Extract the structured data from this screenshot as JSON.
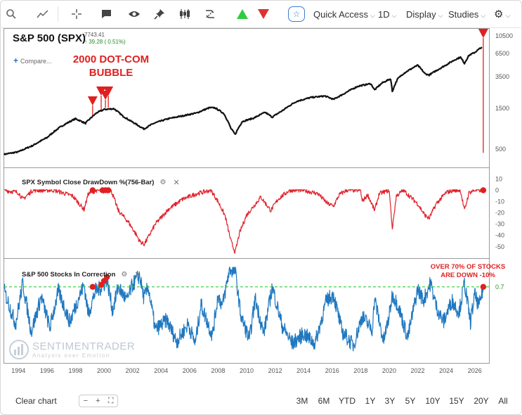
{
  "toolbar": {
    "quick_access_label": "Quick Access",
    "interval_label": "1D",
    "display_label": "Display",
    "studies_label": "Studies"
  },
  "header": {
    "title": "S&P 500 (SPX)",
    "price": "7743.41",
    "change": "39.28 ( 0.51%)",
    "compare_label": "Compare..."
  },
  "annotations": {
    "dotcom_line1": "2000 DOT-COM",
    "dotcom_line2": "BUBBLE",
    "over70_line1": "OVER 70% OF STOCKS",
    "over70_line2": "ARE DOWN -10%"
  },
  "panels": {
    "drawdown_title": "SPX Symbol Close DrawDown %(756-Bar)",
    "correction_title": "S&P 500 Stocks In Correction"
  },
  "watermark": {
    "brand": "SENTIMENTRADER",
    "tagline": "Analysis over Emotion"
  },
  "colors": {
    "price_line": "#111111",
    "drawdown_line": "#e0202a",
    "correction_line": "#1f78c1",
    "threshold_line": "#2fcc3a",
    "signal_marker": "#e02020",
    "buy_arrow": "#2ecc40",
    "sell_arrow": "#e03030",
    "accent": "#3b7dd8"
  },
  "bottom_bar": {
    "clear_label": "Clear chart",
    "ranges": [
      "3M",
      "6M",
      "YTD",
      "1Y",
      "3Y",
      "5Y",
      "10Y",
      "15Y",
      "20Y",
      "All"
    ]
  },
  "chart_data": [
    {
      "type": "line",
      "name_text": "S&P 500 (SPX)",
      "scale": "log",
      "ylim": [
        330,
        11500
      ],
      "y_ticks": [
        "10500",
        "6500",
        "3500",
        "1500",
        "500"
      ],
      "y_tick_values": [
        10500,
        6500,
        3500,
        1500,
        500
      ],
      "x_ticks": [
        "1994",
        "1996",
        "1998",
        "2000",
        "2002",
        "2004",
        "2006",
        "2008",
        "2010",
        "2012",
        "2014",
        "2016",
        "2018",
        "2020",
        "2022",
        "2024",
        "2026"
      ],
      "x": [
        1993.0,
        1994.0,
        1995.0,
        1996.0,
        1997.0,
        1998.0,
        1998.7,
        1999.5,
        2000.0,
        2000.7,
        2001.3,
        2001.8,
        2002.5,
        2002.8,
        2003.5,
        2004.5,
        2005.5,
        2006.5,
        2007.4,
        2007.8,
        2008.4,
        2008.9,
        2009.2,
        2009.7,
        2010.5,
        2011.3,
        2011.8,
        2012.5,
        2013.5,
        2014.5,
        2015.5,
        2016.1,
        2016.8,
        2017.8,
        2018.7,
        2018.98,
        2019.5,
        2020.1,
        2020.22,
        2020.6,
        2021.0,
        2022.0,
        2022.5,
        2022.8,
        2023.5,
        2024.0,
        2024.6,
        2025.0,
        2025.28,
        2025.6,
        2026.0,
        2026.5
      ],
      "values": [
        435,
        465,
        550,
        680,
        920,
        1130,
        1000,
        1330,
        1450,
        1480,
        1220,
        1080,
        920,
        860,
        1000,
        1130,
        1220,
        1320,
        1520,
        1510,
        1300,
        870,
        740,
        1050,
        1150,
        1340,
        1180,
        1400,
        1800,
        2000,
        2080,
        1900,
        2200,
        2700,
        2900,
        2450,
        2950,
        3300,
        2350,
        3300,
        3800,
        4750,
        3800,
        3650,
        4300,
        4800,
        5500,
        5900,
        5000,
        6200,
        6700,
        7743
      ],
      "markers": {
        "type": "red-down-arrow",
        "x": [
          1999.2,
          1999.8,
          2000.1,
          2000.3,
          2026.6
        ]
      }
    },
    {
      "type": "line",
      "name_text": "SPX Symbol Close DrawDown %(756-Bar)",
      "ylim": [
        -57,
        14
      ],
      "y_ticks": [
        "10",
        "0",
        "-10",
        "-20",
        "-30",
        "-40",
        "-50"
      ],
      "y_tick_values": [
        10,
        0,
        -10,
        -20,
        -30,
        -40,
        -50
      ],
      "x": [
        1993.0,
        1994.0,
        1994.3,
        1995.0,
        1996.5,
        1997.8,
        1998.6,
        1998.9,
        1999.5,
        2000.0,
        2000.5,
        2001.0,
        2001.7,
        2002.2,
        2002.5,
        2002.8,
        2003.0,
        2003.6,
        2004.5,
        2005.5,
        2006.5,
        2007.5,
        2008.0,
        2008.5,
        2008.9,
        2009.2,
        2009.5,
        2010.0,
        2010.5,
        2011.0,
        2011.7,
        2012.2,
        2013.0,
        2014.0,
        2015.0,
        2015.7,
        2016.1,
        2016.5,
        2017.0,
        2018.0,
        2018.1,
        2018.5,
        2018.98,
        2019.3,
        2020.0,
        2020.22,
        2020.5,
        2021.0,
        2022.0,
        2022.5,
        2022.8,
        2023.3,
        2024.0,
        2024.5,
        2025.0,
        2025.28,
        2025.6,
        2026.0,
        2026.6
      ],
      "values": [
        0,
        -2,
        -8,
        0,
        0,
        -5,
        -17,
        -3,
        0,
        -1,
        0,
        -18,
        -28,
        -38,
        -45,
        -48,
        -44,
        -30,
        -17,
        -8,
        -3,
        0,
        -10,
        -23,
        -45,
        -55,
        -38,
        -22,
        -14,
        -6,
        -18,
        -8,
        0,
        0,
        -3,
        -12,
        -14,
        -4,
        0,
        0,
        -10,
        -4,
        -18,
        -3,
        0,
        -34,
        -5,
        0,
        -12,
        -22,
        -25,
        -12,
        -2,
        0,
        0,
        -18,
        -2,
        0,
        0
      ],
      "markers": {
        "type": "red-dot",
        "x": [
          1999.2,
          1999.9,
          2000.1,
          2000.3,
          2026.6
        ],
        "y": [
          0,
          0,
          0,
          0,
          0
        ]
      }
    },
    {
      "type": "line",
      "name_text": "S&P 500 Stocks In Correction",
      "ylim": [
        -0.05,
        0.9
      ],
      "y_ticks": [
        "0.7"
      ],
      "y_tick_values": [
        0.7
      ],
      "threshold": 0.7,
      "x": [
        1993.0,
        1993.8,
        1994.3,
        1994.9,
        1995.6,
        1996.2,
        1996.8,
        1997.6,
        1998.2,
        1998.6,
        1998.9,
        1999.4,
        1999.9,
        2000.2,
        2000.6,
        2001.0,
        2001.6,
        2002.0,
        2002.5,
        2002.8,
        2003.1,
        2003.6,
        2004.4,
        2005.1,
        2005.9,
        2006.4,
        2006.8,
        2007.6,
        2008.0,
        2008.3,
        2008.8,
        2009.2,
        2009.6,
        2010.2,
        2010.6,
        2011.2,
        2011.8,
        2012.5,
        2013.2,
        2014.0,
        2014.8,
        2015.6,
        2016.1,
        2016.7,
        2017.5,
        2018.1,
        2018.8,
        2018.98,
        2019.6,
        2020.0,
        2020.22,
        2020.6,
        2021.3,
        2022.0,
        2022.4,
        2022.9,
        2023.3,
        2023.8,
        2024.4,
        2024.9,
        2025.28,
        2025.7,
        2026.0,
        2026.3,
        2026.6
      ],
      "values": [
        0.66,
        0.32,
        0.74,
        0.24,
        0.6,
        0.28,
        0.66,
        0.34,
        0.58,
        0.72,
        0.42,
        0.66,
        0.7,
        0.78,
        0.46,
        0.7,
        0.56,
        0.72,
        0.82,
        0.58,
        0.7,
        0.26,
        0.36,
        0.14,
        0.32,
        0.12,
        0.52,
        0.2,
        0.62,
        0.5,
        0.88,
        0.86,
        0.4,
        0.16,
        0.58,
        0.22,
        0.7,
        0.3,
        0.12,
        0.22,
        0.12,
        0.56,
        0.62,
        0.24,
        0.1,
        0.4,
        0.26,
        0.58,
        0.14,
        0.4,
        0.62,
        0.52,
        0.18,
        0.68,
        0.56,
        0.74,
        0.5,
        0.34,
        0.56,
        0.44,
        0.74,
        0.34,
        0.62,
        0.5,
        0.7
      ],
      "markers": {
        "type": "red-dot",
        "x": [
          1999.2,
          1999.8,
          2000.0,
          2000.2,
          2026.6
        ],
        "y": [
          0.7,
          0.72,
          0.76,
          0.8,
          0.7
        ]
      }
    }
  ],
  "x_axis": {
    "ticks": [
      "1994",
      "1996",
      "1998",
      "2000",
      "2002",
      "2004",
      "2006",
      "2008",
      "2010",
      "2012",
      "2014",
      "2016",
      "2018",
      "2020",
      "2022",
      "2024",
      "2026"
    ]
  }
}
